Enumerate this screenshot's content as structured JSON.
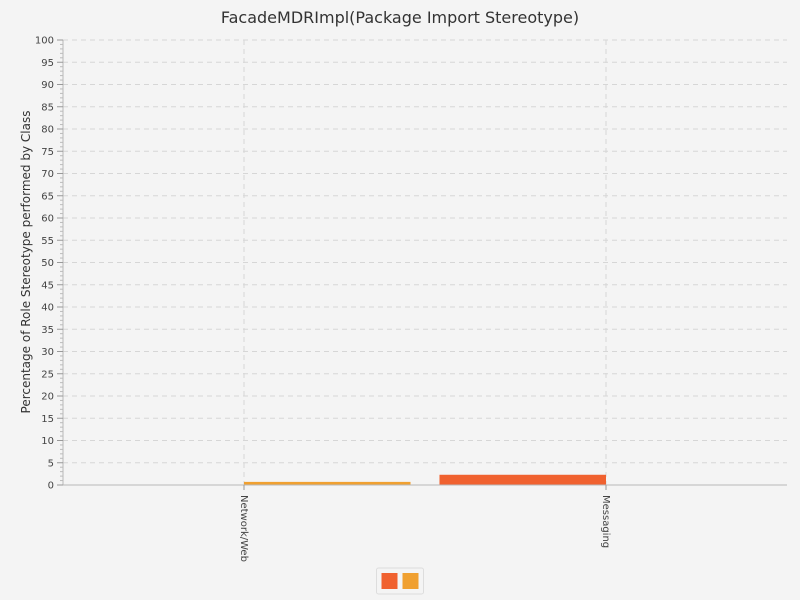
{
  "chart_data": {
    "type": "bar",
    "title": "FacadeMDRImpl(Package Import Stereotype)",
    "ylabel": "Percentage of Role Stereotype performed by Class",
    "xlabel": "",
    "categories": [
      "Network/Web",
      "Messaging"
    ],
    "series": [
      {
        "color": "#f0612f",
        "values": [
          0,
          2.3
        ]
      },
      {
        "color": "#f0a030",
        "values": [
          0.7,
          0
        ]
      }
    ],
    "ylim": [
      0,
      100
    ],
    "ytick_step": 5,
    "grid": true,
    "legend_position": "bottom"
  }
}
